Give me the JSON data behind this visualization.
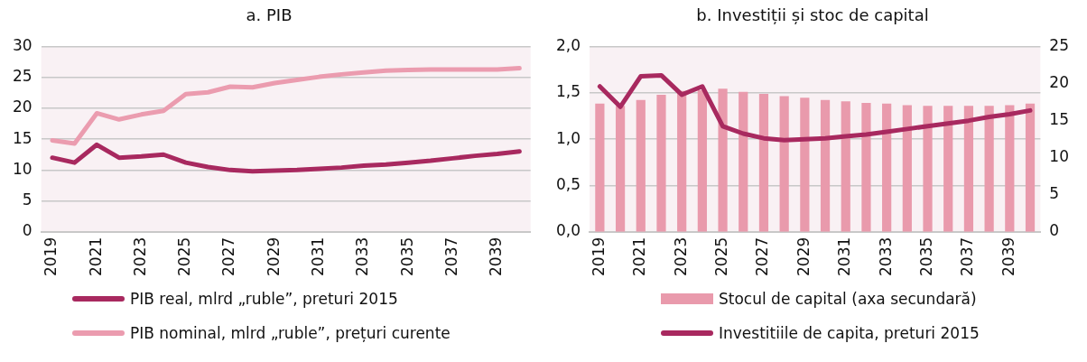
{
  "chart_data": [
    {
      "type": "line",
      "title": "a. PIB",
      "categories": [
        "2019",
        null,
        "2021",
        null,
        "2023",
        null,
        "2025",
        null,
        "2027",
        null,
        "2029",
        null,
        "2031",
        null,
        "2033",
        null,
        "2035",
        null,
        "2037",
        null,
        "2039",
        null
      ],
      "series": [
        {
          "name": "PIB real, mlrd „ruble”, preturi 2015",
          "color": "#a8295f",
          "values": [
            12.0,
            11.2,
            14.1,
            12.0,
            12.2,
            12.5,
            11.2,
            10.5,
            10.0,
            9.8,
            9.9,
            10.0,
            10.2,
            10.4,
            10.7,
            10.9,
            11.2,
            11.5,
            11.9,
            12.3,
            12.6,
            13.0
          ]
        },
        {
          "name": "PIB nominal, mlrd „ruble”, prețuri curente",
          "color": "#eb9caf",
          "values": [
            14.8,
            14.3,
            19.2,
            18.2,
            19.0,
            19.6,
            22.3,
            22.6,
            23.5,
            23.4,
            24.1,
            24.6,
            25.1,
            25.5,
            25.8,
            26.1,
            26.2,
            26.3,
            26.3,
            26.3,
            26.3,
            26.5
          ]
        }
      ],
      "ylim": [
        0,
        30
      ],
      "yticks": [
        0,
        5,
        10,
        15,
        20,
        25,
        30
      ],
      "grid": "y",
      "legend": "bottom",
      "line_style": "solid",
      "marker": "none"
    },
    {
      "type": "bar",
      "title": "b. Investiții și stoc de capital",
      "categories": [
        "2019",
        null,
        "2021",
        null,
        "2023",
        null,
        "2025",
        null,
        "2027",
        null,
        "2029",
        null,
        "2031",
        null,
        "2033",
        null,
        "2035",
        null,
        "2037",
        null,
        "2039",
        null
      ],
      "series": [
        {
          "name": "Stocul de capital (axa secundară)",
          "type": "bar",
          "axis": "y2",
          "color": "#e99aac",
          "values": [
            17.3,
            17.0,
            17.8,
            18.5,
            19.0,
            19.1,
            19.3,
            18.9,
            18.6,
            18.3,
            18.1,
            17.8,
            17.6,
            17.4,
            17.3,
            17.1,
            17.0,
            17.0,
            17.0,
            17.0,
            17.1,
            17.3
          ]
        },
        {
          "name": "Investitiile de capita, preturi 2015",
          "type": "line",
          "axis": "y",
          "color": "#a8295f",
          "values": [
            1.57,
            1.35,
            1.68,
            1.69,
            1.48,
            1.57,
            1.14,
            1.06,
            1.01,
            0.99,
            1.0,
            1.01,
            1.03,
            1.05,
            1.08,
            1.11,
            1.14,
            1.17,
            1.2,
            1.24,
            1.27,
            1.31
          ]
        }
      ],
      "ylim": [
        0,
        2
      ],
      "yticks": [
        {
          "value": 0,
          "label": "0,0"
        },
        {
          "value": 0.5,
          "label": "0,5"
        },
        {
          "value": 1,
          "label": "1,0"
        },
        {
          "value": 1.5,
          "label": "1,5"
        },
        {
          "value": 2,
          "label": "2,0"
        }
      ],
      "y2lim": [
        0,
        25
      ],
      "y2ticks": [
        0,
        5,
        10,
        15,
        20,
        25
      ],
      "grid": "y",
      "legend": "bottom",
      "line_style": "solid",
      "marker": "none"
    }
  ]
}
